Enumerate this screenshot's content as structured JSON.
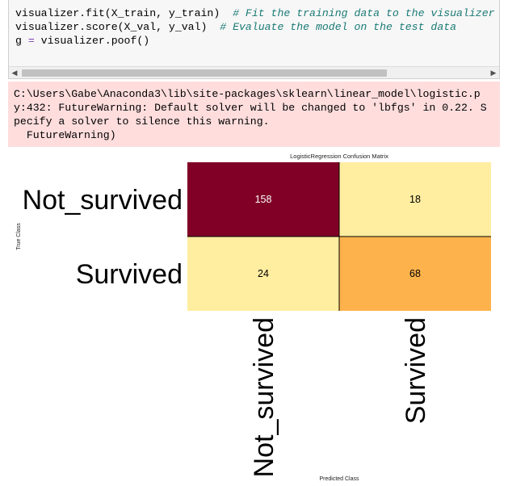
{
  "code_cell": {
    "lines": [
      {
        "code": "visualizer.fit(X_train, y_train)  ",
        "comment": "# Fit the training data to the visualizer"
      },
      {
        "code": "visualizer.score(X_val, y_val)  ",
        "comment": "# Evaluate the model on the test data"
      },
      {
        "pre": "g ",
        "op": "=",
        "post": " visualizer.poof()"
      }
    ]
  },
  "stderr": {
    "text": "C:\\Users\\Gabe\\Anaconda3\\lib\\site-packages\\sklearn\\linear_model\\logistic.p\ny:432: FutureWarning: Default solver will be changed to 'lbfgs' in 0.22. S\npecify a solver to silence this warning.\n  FutureWarning)"
  },
  "colors": {
    "code_background": "#f7f7f7",
    "stderr_background": "#ffdddd",
    "comment": "#1a7a75",
    "operator": "#7a3fb0",
    "cell_high": "#800026",
    "cell_mid": "#feb24c",
    "cell_low": "#ffeda0"
  },
  "chart_data": {
    "type": "heatmap",
    "title": "LogisticRegression Confusion Matrix",
    "xlabel": "Predicted Class",
    "ylabel": "True Class",
    "row_labels": [
      "Not_survived",
      "Survived"
    ],
    "col_labels": [
      "Not_survived",
      "Survived"
    ],
    "values": [
      [
        158,
        18
      ],
      [
        24,
        68
      ]
    ],
    "cell_colors": [
      [
        "#800026",
        "#ffeda0"
      ],
      [
        "#ffeda0",
        "#feb24c"
      ]
    ],
    "text_colors": [
      [
        "#ffffff",
        "#000000"
      ],
      [
        "#000000",
        "#000000"
      ]
    ]
  }
}
